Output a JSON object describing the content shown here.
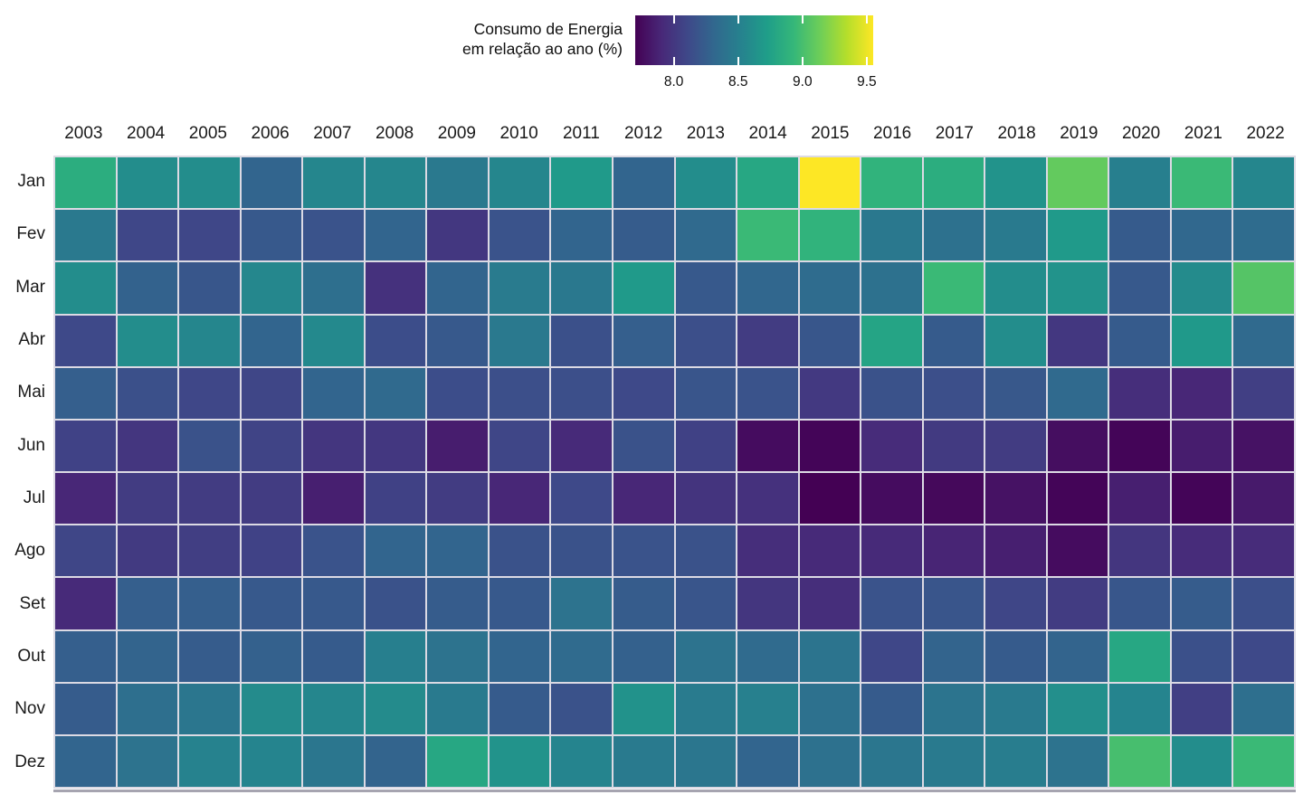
{
  "legend": {
    "title_lines": [
      "Consumo de Energia",
      "em relação ao ano (%)"
    ],
    "tick_labels": [
      "8.0",
      "8.5",
      "9.0",
      "9.5"
    ]
  },
  "chart_data": {
    "type": "heatmap",
    "title": "Consumo de Energia em relação ao ano (%)",
    "unit": "%",
    "legend_position": "top",
    "grid": "white gaps between cells",
    "columns": [
      "2003",
      "2004",
      "2005",
      "2006",
      "2007",
      "2008",
      "2009",
      "2010",
      "2011",
      "2012",
      "2013",
      "2014",
      "2015",
      "2016",
      "2017",
      "2018",
      "2019",
      "2020",
      "2021",
      "2022"
    ],
    "rows": [
      "Jan",
      "Fev",
      "Mar",
      "Abr",
      "Mai",
      "Jun",
      "Jul",
      "Ago",
      "Set",
      "Out",
      "Nov",
      "Dez"
    ],
    "values": [
      [
        8.85,
        8.6,
        8.6,
        8.3,
        8.55,
        8.55,
        8.45,
        8.55,
        8.7,
        8.3,
        8.6,
        8.8,
        9.55,
        8.9,
        8.85,
        8.65,
        9.1,
        8.5,
        8.95,
        8.55
      ],
      [
        8.45,
        8.1,
        8.1,
        8.22,
        8.18,
        8.3,
        8.0,
        8.18,
        8.3,
        8.24,
        8.33,
        8.95,
        8.9,
        8.44,
        8.39,
        8.46,
        8.7,
        8.23,
        8.32,
        8.35
      ],
      [
        8.6,
        8.28,
        8.2,
        8.56,
        8.37,
        7.96,
        8.3,
        8.47,
        8.44,
        8.7,
        8.22,
        8.31,
        8.35,
        8.39,
        8.95,
        8.6,
        8.65,
        8.22,
        8.59,
        9.05
      ],
      [
        8.11,
        8.6,
        8.55,
        8.3,
        8.57,
        8.14,
        8.22,
        8.45,
        8.16,
        8.26,
        8.15,
        8.03,
        8.2,
        8.78,
        8.23,
        8.6,
        8.0,
        8.23,
        8.69,
        8.33
      ],
      [
        8.26,
        8.16,
        8.1,
        8.09,
        8.3,
        8.33,
        8.14,
        8.15,
        8.15,
        8.11,
        8.19,
        8.18,
        8.01,
        8.17,
        8.15,
        8.21,
        8.33,
        7.94,
        7.9,
        8.05
      ],
      [
        8.07,
        7.99,
        8.17,
        8.08,
        7.99,
        8.0,
        7.85,
        8.09,
        7.92,
        8.17,
        8.06,
        7.76,
        7.72,
        7.93,
        8.02,
        8.03,
        7.77,
        7.72,
        7.85,
        7.79
      ],
      [
        7.9,
        8.03,
        8.03,
        8.03,
        7.86,
        8.06,
        8.03,
        7.9,
        8.11,
        7.9,
        7.98,
        7.96,
        7.7,
        7.76,
        7.74,
        7.79,
        7.72,
        7.86,
        7.72,
        7.83
      ],
      [
        8.09,
        8.02,
        8.04,
        8.07,
        8.18,
        8.3,
        8.3,
        8.17,
        8.17,
        8.18,
        8.17,
        7.94,
        7.92,
        7.92,
        7.89,
        7.86,
        7.76,
        7.99,
        7.93,
        7.93
      ],
      [
        7.92,
        8.26,
        8.26,
        8.22,
        8.22,
        8.17,
        8.24,
        8.22,
        8.4,
        8.24,
        8.19,
        7.99,
        7.94,
        8.18,
        8.19,
        8.09,
        8.03,
        8.2,
        8.24,
        8.15
      ],
      [
        8.26,
        8.29,
        8.24,
        8.27,
        8.23,
        8.5,
        8.4,
        8.3,
        8.34,
        8.27,
        8.4,
        8.34,
        8.41,
        8.1,
        8.29,
        8.23,
        8.29,
        8.8,
        8.16,
        8.11
      ],
      [
        8.24,
        8.37,
        8.43,
        8.59,
        8.55,
        8.59,
        8.46,
        8.23,
        8.17,
        8.64,
        8.47,
        8.51,
        8.39,
        8.23,
        8.41,
        8.46,
        8.62,
        8.54,
        8.05,
        8.37
      ],
      [
        8.3,
        8.4,
        8.52,
        8.54,
        8.43,
        8.29,
        8.8,
        8.65,
        8.54,
        8.46,
        8.43,
        8.3,
        8.39,
        8.43,
        8.46,
        8.48,
        8.4,
        9.0,
        8.6,
        8.95
      ]
    ],
    "color_scale": {
      "name": "viridis",
      "domain": [
        7.7,
        9.55
      ],
      "anchors": [
        "#440154",
        "#482878",
        "#3e4989",
        "#31688e",
        "#26828e",
        "#1f9e89",
        "#35b779",
        "#6ece58",
        "#b5de2b",
        "#fde725"
      ]
    },
    "legend_ticks": [
      8.0,
      8.5,
      9.0,
      9.5
    ]
  }
}
